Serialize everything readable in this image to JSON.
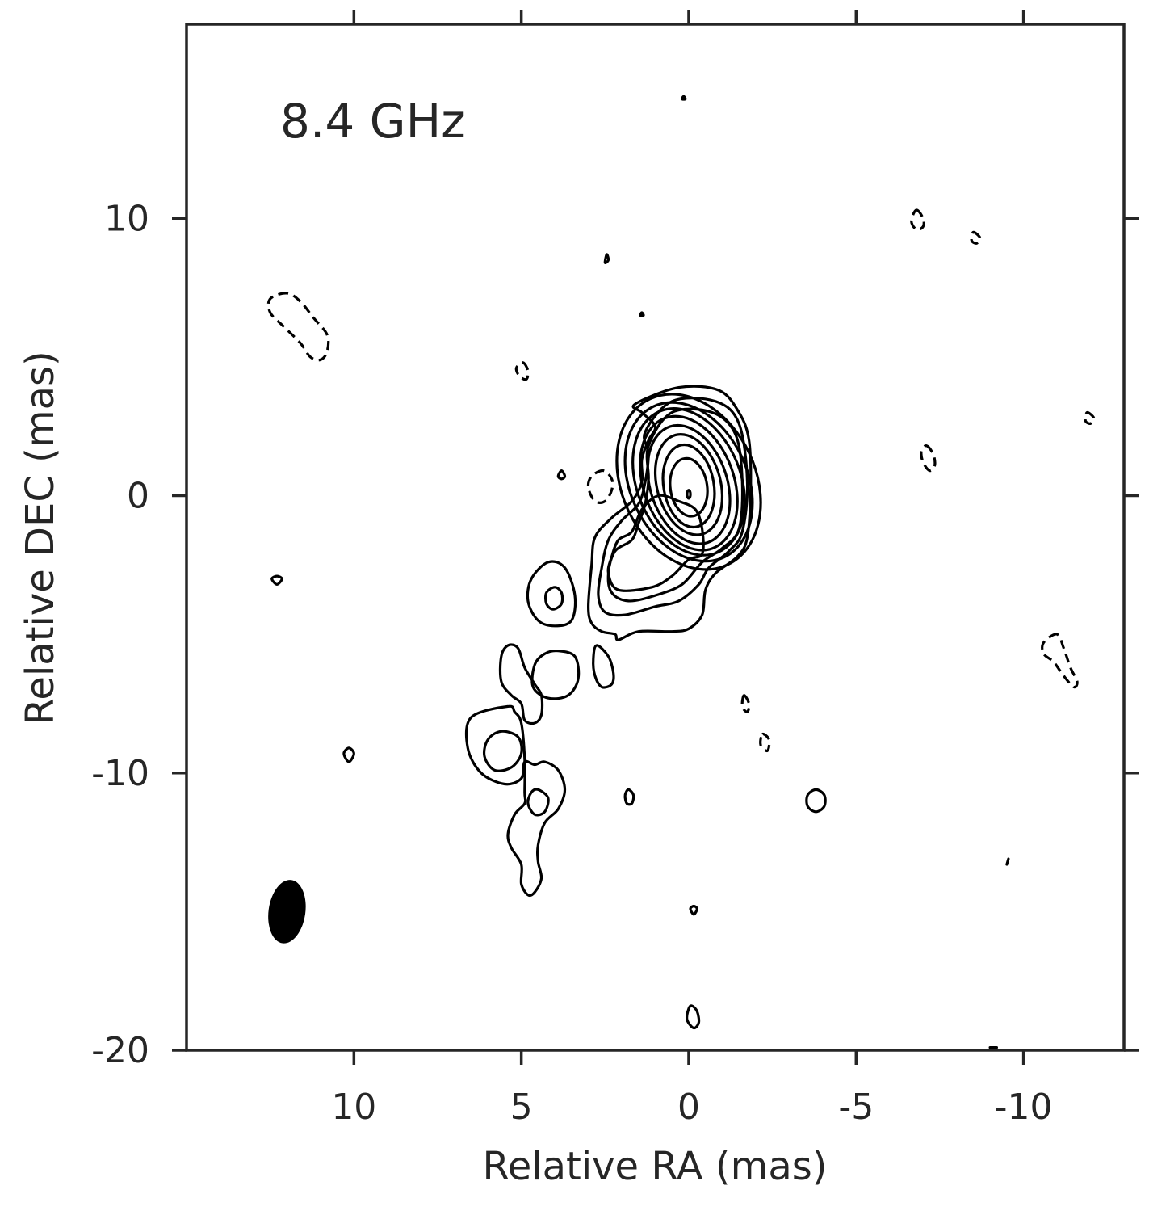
{
  "chart_data": {
    "type": "contour",
    "annotation": "8.4 GHz",
    "xlabel": "Relative RA (mas)",
    "ylabel": "Relative DEC (mas)",
    "xlim": [
      15,
      -13
    ],
    "ylim": [
      -20,
      17
    ],
    "x_reversed": true,
    "xticks": [
      10,
      5,
      0,
      -5,
      -10
    ],
    "xtick_labels": [
      "10",
      "5",
      "0",
      "-5",
      "-10"
    ],
    "yticks": [
      10,
      0,
      -10,
      -20
    ],
    "ytick_labels": [
      "10",
      "0",
      "-10",
      "-20"
    ],
    "line_color": "#000000",
    "core": {
      "center": [
        0.0,
        0.3
      ],
      "levels": [
        {
          "rx": 2.0,
          "ry": 3.3,
          "rot": -25,
          "dx": 0.0,
          "dy": 0.2
        },
        {
          "rx": 1.75,
          "ry": 3.0,
          "rot": -25,
          "dx": 0.0,
          "dy": 0.2
        },
        {
          "rx": 1.55,
          "ry": 2.75,
          "rot": -22,
          "dx": 0.0,
          "dy": 0.2
        },
        {
          "rx": 1.35,
          "ry": 2.5,
          "rot": -20,
          "dx": 0.0,
          "dy": 0.15
        },
        {
          "rx": 1.15,
          "ry": 2.2,
          "rot": -18,
          "dx": 0.0,
          "dy": 0.1
        },
        {
          "rx": 0.95,
          "ry": 1.85,
          "rot": -15,
          "dx": 0.0,
          "dy": 0.1
        },
        {
          "rx": 0.75,
          "ry": 1.5,
          "rot": -10,
          "dx": 0.0,
          "dy": 0.05
        },
        {
          "rx": 0.55,
          "ry": 1.05,
          "rot": -8,
          "dx": 0.0,
          "dy": 0.0
        },
        {
          "rx": 0.05,
          "ry": 0.15,
          "rot": 0,
          "dx": 0.0,
          "dy": -0.25
        }
      ]
    },
    "positive_contours": [
      [
        [
          1.6,
          3.3
        ],
        [
          0.3,
          3.9
        ],
        [
          -0.9,
          3.8
        ],
        [
          -1.5,
          3.0
        ],
        [
          -1.8,
          2.0
        ],
        [
          -1.85,
          0.3
        ],
        [
          -1.75,
          -1.5
        ],
        [
          -1.45,
          -2.2
        ],
        [
          -0.8,
          -2.8
        ],
        [
          -0.5,
          -3.4
        ],
        [
          -0.4,
          -4.3
        ],
        [
          0,
          -4.8
        ],
        [
          0.5,
          -4.9
        ],
        [
          1.5,
          -4.9
        ],
        [
          2.1,
          -5.2
        ],
        [
          2.2,
          -5.0
        ],
        [
          2.6,
          -4.9
        ],
        [
          2.9,
          -4.6
        ],
        [
          3.0,
          -4.0
        ],
        [
          2.9,
          -2.5
        ],
        [
          2.8,
          -1.5
        ],
        [
          2.3,
          -0.8
        ],
        [
          1.7,
          -0.2
        ],
        [
          1.4,
          0.5
        ],
        [
          1.4,
          1.3
        ],
        [
          1.2,
          2.0
        ],
        [
          1.0,
          2.5
        ],
        [
          1.4,
          3.0
        ]
      ],
      [
        [
          1.3,
          2.3
        ],
        [
          0.5,
          3.4
        ],
        [
          -0.8,
          3.4
        ],
        [
          -1.5,
          2.6
        ],
        [
          -1.75,
          0.5
        ],
        [
          -1.6,
          -1.3
        ],
        [
          -1.2,
          -2.0
        ],
        [
          -0.6,
          -2.6
        ],
        [
          -0.3,
          -3.2
        ],
        [
          0.3,
          -3.8
        ],
        [
          1.0,
          -4.0
        ],
        [
          1.9,
          -4.3
        ],
        [
          2.5,
          -4.2
        ],
        [
          2.7,
          -3.6
        ],
        [
          2.6,
          -2.6
        ],
        [
          2.4,
          -1.6
        ],
        [
          2.0,
          -0.9
        ],
        [
          1.5,
          -0.3
        ],
        [
          1.3,
          0.5
        ],
        [
          1.2,
          1.5
        ]
      ],
      [
        [
          1.2,
          1.8
        ],
        [
          0.5,
          3.0
        ],
        [
          -0.7,
          3.0
        ],
        [
          -1.4,
          2.2
        ],
        [
          -1.6,
          0.5
        ],
        [
          -1.5,
          -1.2
        ],
        [
          -1.0,
          -1.9
        ],
        [
          -0.4,
          -2.4
        ],
        [
          0.2,
          -3.2
        ],
        [
          1.0,
          -3.6
        ],
        [
          1.8,
          -3.8
        ],
        [
          2.3,
          -3.5
        ],
        [
          2.4,
          -2.8
        ],
        [
          2.2,
          -2.0
        ],
        [
          1.7,
          -1.6
        ],
        [
          1.5,
          -1.0
        ],
        [
          1.3,
          -0.3
        ],
        [
          1.2,
          0.6
        ]
      ],
      [
        [
          2.1,
          -3.4
        ],
        [
          1.1,
          -3.3
        ],
        [
          0.5,
          -2.9
        ],
        [
          0.0,
          -2.3
        ],
        [
          -0.4,
          -2.1
        ],
        [
          -0.4,
          -1.2
        ],
        [
          -0.2,
          -0.5
        ],
        [
          0.3,
          -0.2
        ],
        [
          0.9,
          0.0
        ],
        [
          1.4,
          -0.5
        ],
        [
          1.7,
          -1.3
        ],
        [
          2.1,
          -1.6
        ],
        [
          2.3,
          -2.2
        ],
        [
          2.4,
          -2.8
        ]
      ],
      [
        [
          4.2,
          -2.4
        ],
        [
          3.7,
          -2.6
        ],
        [
          3.4,
          -3.6
        ],
        [
          3.5,
          -4.5
        ],
        [
          4.0,
          -4.7
        ],
        [
          4.5,
          -4.5
        ],
        [
          4.8,
          -3.8
        ],
        [
          4.7,
          -3.0
        ]
      ],
      [
        [
          4.0,
          -3.3
        ],
        [
          3.8,
          -3.5
        ],
        [
          3.8,
          -3.9
        ],
        [
          4.05,
          -4.1
        ],
        [
          4.25,
          -3.9
        ],
        [
          4.25,
          -3.5
        ]
      ],
      [
        [
          2.75,
          -5.4
        ],
        [
          2.4,
          -5.8
        ],
        [
          2.25,
          -6.4
        ],
        [
          2.3,
          -6.8
        ],
        [
          2.6,
          -6.9
        ],
        [
          2.8,
          -6.5
        ],
        [
          2.85,
          -5.9
        ]
      ],
      [
        [
          3.9,
          -5.6
        ],
        [
          3.4,
          -5.8
        ],
        [
          3.3,
          -6.6
        ],
        [
          3.6,
          -7.2
        ],
        [
          4.2,
          -7.3
        ],
        [
          4.65,
          -6.9
        ],
        [
          4.6,
          -6.1
        ],
        [
          4.3,
          -5.7
        ]
      ],
      [
        [
          5.4,
          -5.4
        ],
        [
          5.6,
          -5.8
        ],
        [
          5.6,
          -6.7
        ],
        [
          5.3,
          -7.2
        ],
        [
          5.0,
          -7.5
        ],
        [
          4.9,
          -8.1
        ],
        [
          4.6,
          -8.2
        ],
        [
          4.4,
          -7.9
        ],
        [
          4.4,
          -7.2
        ],
        [
          4.6,
          -6.8
        ],
        [
          4.9,
          -6.2
        ],
        [
          5.1,
          -5.5
        ]
      ],
      [
        [
          5.4,
          -7.6
        ],
        [
          6.5,
          -8.0
        ],
        [
          6.6,
          -9.1
        ],
        [
          6.2,
          -10.0
        ],
        [
          5.5,
          -10.4
        ],
        [
          5.0,
          -10.2
        ],
        [
          4.9,
          -9.6
        ],
        [
          4.6,
          -9.7
        ],
        [
          4.3,
          -9.6
        ],
        [
          3.9,
          -9.9
        ],
        [
          3.7,
          -10.6
        ],
        [
          3.9,
          -11.3
        ],
        [
          4.3,
          -11.8
        ],
        [
          4.5,
          -12.6
        ],
        [
          4.5,
          -13.2
        ],
        [
          4.4,
          -13.8
        ],
        [
          4.6,
          -14.3
        ],
        [
          4.8,
          -14.4
        ],
        [
          5.0,
          -14.0
        ],
        [
          5.0,
          -13.3
        ],
        [
          5.3,
          -12.7
        ],
        [
          5.4,
          -12.2
        ],
        [
          5.2,
          -11.5
        ],
        [
          4.9,
          -11.1
        ],
        [
          4.9,
          -10.7
        ],
        [
          4.9,
          -9.5
        ],
        [
          5.0,
          -8.2
        ],
        [
          5.2,
          -7.8
        ]
      ],
      [
        [
          5.6,
          -8.5
        ],
        [
          5.1,
          -8.7
        ],
        [
          5.0,
          -9.3
        ],
        [
          5.3,
          -9.8
        ],
        [
          5.8,
          -9.9
        ],
        [
          6.1,
          -9.4
        ],
        [
          6.0,
          -8.8
        ]
      ],
      [
        [
          4.5,
          -10.6
        ],
        [
          4.2,
          -10.9
        ],
        [
          4.3,
          -11.4
        ],
        [
          4.6,
          -11.5
        ],
        [
          4.8,
          -11.1
        ],
        [
          4.7,
          -10.7
        ]
      ],
      [
        [
          1.8,
          -10.6
        ],
        [
          1.65,
          -10.8
        ],
        [
          1.7,
          -11.1
        ],
        [
          1.85,
          -11.1
        ],
        [
          1.9,
          -10.8
        ]
      ],
      [
        [
          -3.8,
          -10.6
        ],
        [
          -3.55,
          -10.8
        ],
        [
          -3.55,
          -11.2
        ],
        [
          -3.8,
          -11.4
        ],
        [
          -4.05,
          -11.2
        ],
        [
          -4.05,
          -10.8
        ]
      ],
      [
        [
          -0.1,
          -18.4
        ],
        [
          -0.25,
          -18.6
        ],
        [
          -0.3,
          -19.0
        ],
        [
          -0.15,
          -19.2
        ],
        [
          0.05,
          -18.9
        ],
        [
          0.0,
          -18.5
        ]
      ],
      [
        [
          -0.15,
          -14.8
        ],
        [
          -0.05,
          -14.9
        ],
        [
          -0.15,
          -15.1
        ],
        [
          -0.25,
          -14.9
        ]
      ],
      [
        [
          12.3,
          -2.9
        ],
        [
          12.15,
          -3.0
        ],
        [
          12.3,
          -3.2
        ],
        [
          12.45,
          -3.0
        ]
      ],
      [
        [
          10.15,
          -9.1
        ],
        [
          10.0,
          -9.3
        ],
        [
          10.15,
          -9.6
        ],
        [
          10.3,
          -9.3
        ]
      ],
      [
        [
          1.4,
          6.6
        ],
        [
          1.35,
          6.5
        ],
        [
          1.45,
          6.5
        ]
      ],
      [
        [
          0.15,
          14.4
        ],
        [
          0.1,
          14.3
        ],
        [
          0.2,
          14.3
        ]
      ],
      [
        [
          3.8,
          0.9
        ],
        [
          3.7,
          0.7
        ],
        [
          3.8,
          0.6
        ],
        [
          3.9,
          0.7
        ]
      ],
      [
        [
          2.45,
          8.7
        ],
        [
          2.4,
          8.5
        ],
        [
          2.5,
          8.4
        ]
      ],
      [
        [
          -9.55,
          -13.1
        ],
        [
          -9.5,
          -13.3
        ]
      ],
      [
        [
          -9.0,
          -19.9
        ],
        [
          -9.2,
          -19.9
        ]
      ]
    ],
    "negative_contours": [
      [
        [
          12.0,
          7.3
        ],
        [
          12.5,
          7.1
        ],
        [
          12.5,
          6.6
        ],
        [
          12.1,
          6.1
        ],
        [
          11.6,
          5.5
        ],
        [
          11.3,
          5.0
        ],
        [
          11.0,
          4.9
        ],
        [
          10.8,
          5.2
        ],
        [
          10.8,
          5.8
        ],
        [
          11.2,
          6.4
        ],
        [
          11.6,
          7.0
        ]
      ],
      [
        [
          -11.0,
          -5.0
        ],
        [
          -10.6,
          -5.3
        ],
        [
          -10.6,
          -5.7
        ],
        [
          -10.9,
          -6.0
        ],
        [
          -11.2,
          -6.5
        ],
        [
          -11.5,
          -6.9
        ],
        [
          -11.6,
          -6.7
        ],
        [
          -11.4,
          -6.2
        ],
        [
          -11.2,
          -5.5
        ]
      ],
      [
        [
          2.55,
          0.9
        ],
        [
          2.9,
          0.7
        ],
        [
          3.0,
          0.3
        ],
        [
          2.8,
          -0.2
        ],
        [
          2.5,
          -0.2
        ],
        [
          2.3,
          0.2
        ],
        [
          2.3,
          0.6
        ]
      ],
      [
        [
          -7.1,
          1.8
        ],
        [
          -7.3,
          1.5
        ],
        [
          -7.35,
          1.1
        ],
        [
          -7.2,
          0.9
        ],
        [
          -7.0,
          1.2
        ],
        [
          -6.95,
          1.6
        ]
      ],
      [
        [
          -6.8,
          10.3
        ],
        [
          -7.0,
          10.0
        ],
        [
          -7.0,
          9.7
        ],
        [
          -6.8,
          9.6
        ],
        [
          -6.65,
          9.9
        ]
      ],
      [
        [
          -8.5,
          9.5
        ],
        [
          -8.7,
          9.3
        ],
        [
          -8.6,
          9.1
        ],
        [
          -8.45,
          9.2
        ]
      ],
      [
        [
          4.95,
          4.8
        ],
        [
          4.8,
          4.5
        ],
        [
          4.85,
          4.2
        ],
        [
          5.05,
          4.3
        ],
        [
          5.15,
          4.6
        ]
      ],
      [
        [
          -11.9,
          3.0
        ],
        [
          -12.1,
          2.8
        ],
        [
          -12.0,
          2.6
        ],
        [
          -11.85,
          2.7
        ]
      ],
      [
        [
          -1.65,
          -7.2
        ],
        [
          -1.8,
          -7.5
        ],
        [
          -1.75,
          -7.8
        ],
        [
          -1.6,
          -7.6
        ]
      ],
      [
        [
          -2.2,
          -8.6
        ],
        [
          -2.4,
          -8.8
        ],
        [
          -2.35,
          -9.2
        ],
        [
          -2.15,
          -9.0
        ]
      ]
    ],
    "beam": {
      "center": [
        12.0,
        -15.0
      ],
      "rx": 0.55,
      "ry": 1.15,
      "rot": 8
    }
  }
}
